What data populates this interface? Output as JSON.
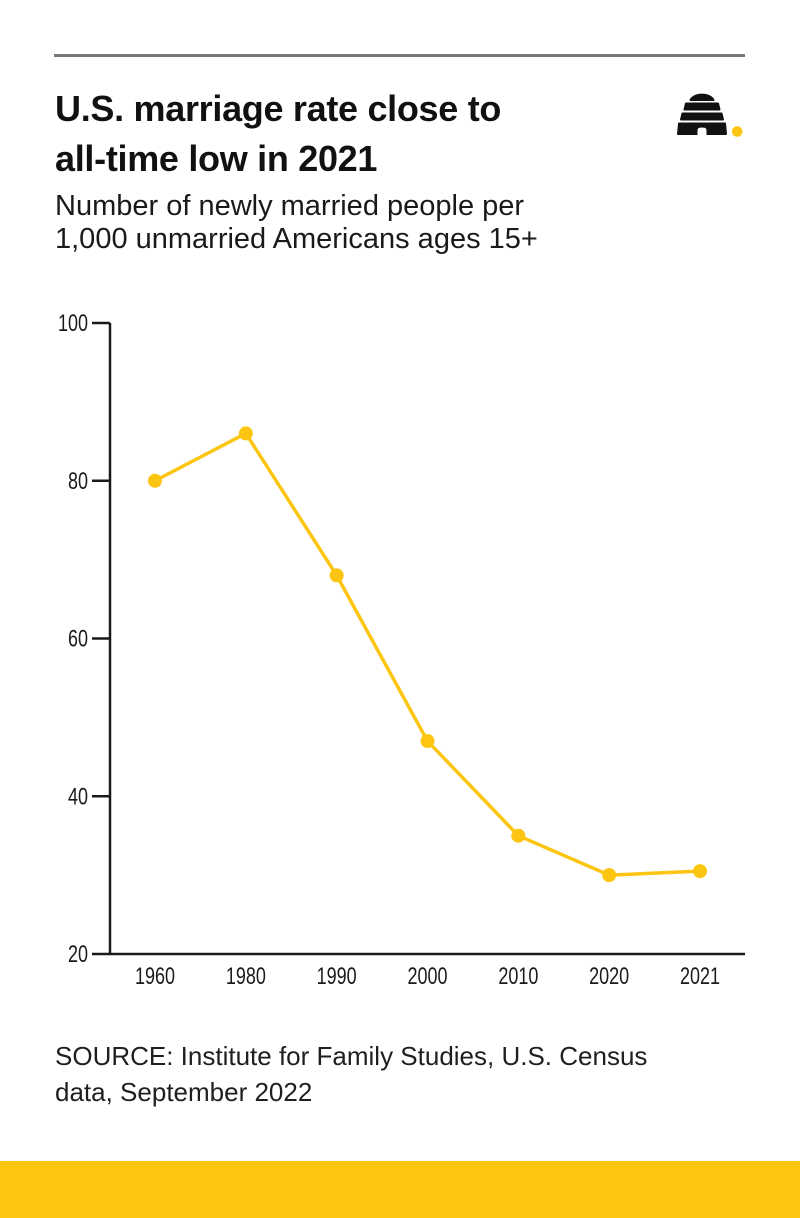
{
  "page": {
    "title_lines": [
      "U.S. marriage rate close to",
      "all-time low in 2021"
    ],
    "subtitle_lines": [
      "Number of newly married people per",
      "1,000 unmarried Americans ages 15+"
    ],
    "source_lines": [
      "SOURCE: Institute for Family Studies, U.S. Census",
      "data, September 2022"
    ],
    "logo_name": "beehive-logo"
  },
  "colors": {
    "accent_yellow": "#fbc511",
    "ink": "#111111",
    "rule_gray": "#77787b",
    "axis": "#1a1a1a"
  },
  "chart_data": {
    "type": "line",
    "title": "U.S. marriage rate close to all-time low in 2021",
    "subtitle": "Number of newly married people per 1,000 unmarried Americans ages 15+",
    "categories": [
      "1960",
      "1980",
      "1990",
      "2000",
      "2010",
      "2020",
      "2021"
    ],
    "values": [
      80,
      86,
      68,
      47,
      35,
      30,
      30.5
    ],
    "ylim": [
      20,
      100
    ],
    "yticks": [
      20,
      40,
      60,
      80,
      100
    ],
    "grid": false,
    "legend": false,
    "marker": "circle",
    "line_color": "#fbc511",
    "source": "SOURCE: Institute for Family Studies, U.S. Census data, September 2022"
  }
}
